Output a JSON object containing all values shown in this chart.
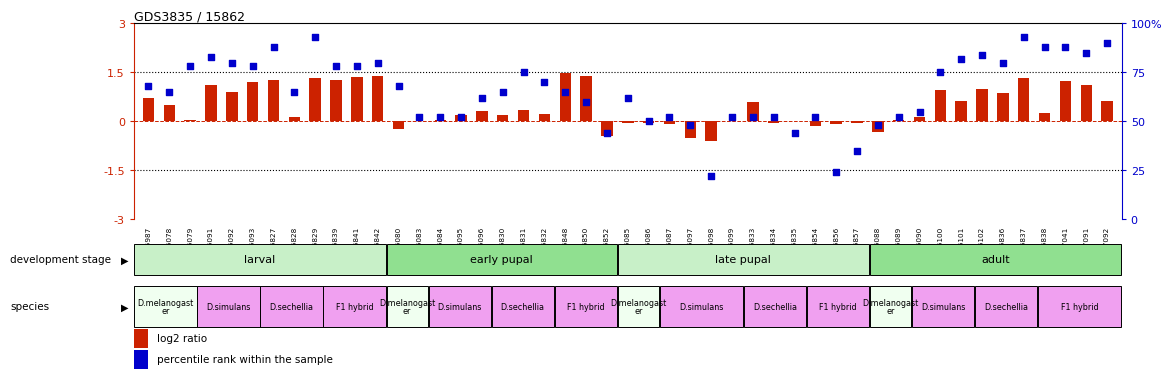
{
  "title": "GDS3835 / 15862",
  "sample_ids": [
    "GSM435987",
    "GSM436078",
    "GSM436079",
    "GSM436091",
    "GSM436092",
    "GSM436093",
    "GSM436827",
    "GSM436828",
    "GSM436829",
    "GSM436839",
    "GSM436841",
    "GSM436842",
    "GSM436080",
    "GSM436083",
    "GSM436084",
    "GSM436095",
    "GSM436096",
    "GSM436830",
    "GSM436831",
    "GSM436832",
    "GSM436848",
    "GSM436850",
    "GSM436852",
    "GSM436085",
    "GSM436086",
    "GSM436087",
    "GSM436097",
    "GSM436098",
    "GSM436099",
    "GSM436833",
    "GSM436834",
    "GSM436835",
    "GSM436854",
    "GSM436856",
    "GSM436857",
    "GSM436088",
    "GSM436089",
    "GSM436090",
    "GSM436100",
    "GSM436101",
    "GSM436102",
    "GSM436836",
    "GSM436837",
    "GSM436838",
    "GSM437041",
    "GSM437091",
    "GSM437092"
  ],
  "log2_ratio": [
    0.72,
    0.5,
    0.05,
    1.1,
    0.9,
    1.2,
    1.28,
    0.12,
    1.32,
    1.28,
    1.35,
    1.4,
    -0.25,
    0.0,
    0.03,
    0.2,
    0.32,
    0.2,
    0.35,
    0.22,
    1.48,
    1.38,
    -0.45,
    -0.05,
    -0.04,
    -0.08,
    -0.5,
    -0.6,
    0.0,
    0.6,
    -0.05,
    0.02,
    -0.15,
    -0.08,
    -0.05,
    -0.32,
    0.05,
    0.12,
    0.95,
    0.62,
    1.0,
    0.88,
    1.32,
    0.25,
    1.22,
    1.1,
    0.62
  ],
  "percentile": [
    68,
    65,
    78,
    83,
    80,
    78,
    88,
    65,
    93,
    78,
    78,
    80,
    68,
    52,
    52,
    52,
    62,
    65,
    75,
    70,
    65,
    60,
    44,
    62,
    50,
    52,
    48,
    22,
    52,
    52,
    52,
    44,
    52,
    24,
    35,
    48,
    52,
    55,
    75,
    82,
    84,
    80,
    93,
    88,
    88,
    85,
    90
  ],
  "dev_stage_groups": [
    {
      "label": "larval",
      "start": 0,
      "end": 12,
      "color": "#c8f0c8"
    },
    {
      "label": "early pupal",
      "start": 12,
      "end": 23,
      "color": "#90e090"
    },
    {
      "label": "late pupal",
      "start": 23,
      "end": 35,
      "color": "#c8f0c8"
    },
    {
      "label": "adult",
      "start": 35,
      "end": 47,
      "color": "#90e090"
    }
  ],
  "species_groups": [
    {
      "label": "D.melanogast\ner",
      "start": 0,
      "end": 3,
      "color": "#f0fff0"
    },
    {
      "label": "D.simulans",
      "start": 3,
      "end": 6,
      "color": "#f0a0f0"
    },
    {
      "label": "D.sechellia",
      "start": 6,
      "end": 9,
      "color": "#f0a0f0"
    },
    {
      "label": "F1 hybrid",
      "start": 9,
      "end": 12,
      "color": "#f0a0f0"
    },
    {
      "label": "D.melanogast\ner",
      "start": 12,
      "end": 14,
      "color": "#f0fff0"
    },
    {
      "label": "D.simulans",
      "start": 14,
      "end": 17,
      "color": "#f0a0f0"
    },
    {
      "label": "D.sechellia",
      "start": 17,
      "end": 20,
      "color": "#f0a0f0"
    },
    {
      "label": "F1 hybrid",
      "start": 20,
      "end": 23,
      "color": "#f0a0f0"
    },
    {
      "label": "D.melanogast\ner",
      "start": 23,
      "end": 25,
      "color": "#f0fff0"
    },
    {
      "label": "D.simulans",
      "start": 25,
      "end": 29,
      "color": "#f0a0f0"
    },
    {
      "label": "D.sechellia",
      "start": 29,
      "end": 32,
      "color": "#f0a0f0"
    },
    {
      "label": "F1 hybrid",
      "start": 32,
      "end": 35,
      "color": "#f0a0f0"
    },
    {
      "label": "D.melanogast\ner",
      "start": 35,
      "end": 37,
      "color": "#f0fff0"
    },
    {
      "label": "D.simulans",
      "start": 37,
      "end": 40,
      "color": "#f0a0f0"
    },
    {
      "label": "D.sechellia",
      "start": 40,
      "end": 43,
      "color": "#f0a0f0"
    },
    {
      "label": "F1 hybrid",
      "start": 43,
      "end": 47,
      "color": "#f0a0f0"
    }
  ],
  "ylim_left": [
    -3,
    3
  ],
  "ylim_right": [
    0,
    100
  ],
  "yticks_left": [
    -3,
    -1.5,
    0,
    1.5,
    3
  ],
  "yticks_right": [
    0,
    25,
    50,
    75,
    100
  ],
  "bar_color": "#cc2200",
  "dot_color": "#0000cc",
  "legend_items": [
    {
      "label": "log2 ratio",
      "color": "#cc2200"
    },
    {
      "label": "percentile rank within the sample",
      "color": "#0000cc"
    }
  ]
}
